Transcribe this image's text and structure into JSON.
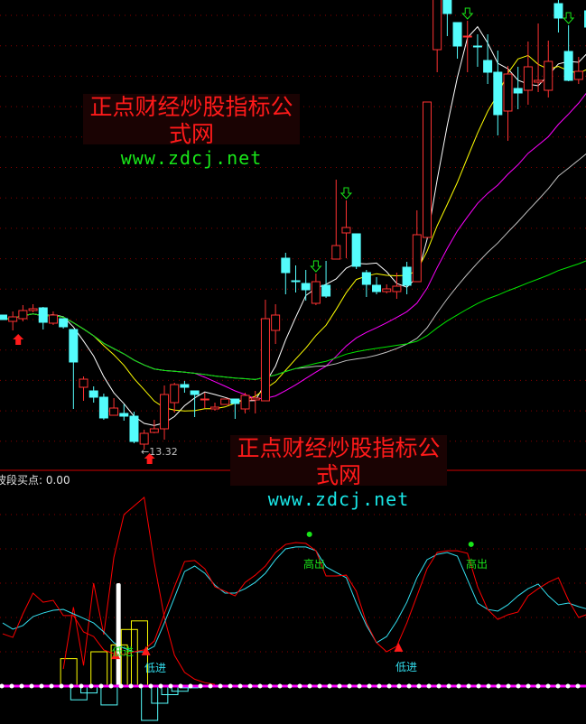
{
  "watermark": {
    "title": "正点财经炒股指标公式网",
    "url": "www.zdcj.net"
  },
  "indicator": {
    "title": "波段买点: 0.00"
  },
  "low_label": "←13.32",
  "signals": {
    "low_in": "低进",
    "high_out": "高出"
  },
  "colors": {
    "up": "#ff3232",
    "down": "#54fcfc",
    "ma5": "#ffffff",
    "ma10": "#ffff00",
    "ma20": "#ff00ff",
    "ma30": "#c0c0c0",
    "ma60": "#00e600",
    "grid": "#8b0000",
    "osc_fast": "#ff0000",
    "osc_slow": "#33e0f0"
  },
  "chart_data": [
    {
      "type": "candlestick",
      "ohlc": [
        [
          16.3,
          16.3,
          16.2,
          16.2
        ],
        [
          16.16,
          16.38,
          15.96,
          16.26
        ],
        [
          16.22,
          16.52,
          16.16,
          16.4
        ],
        [
          16.4,
          16.54,
          16.36,
          16.44
        ],
        [
          16.46,
          16.48,
          15.98,
          16.14
        ],
        [
          16.12,
          16.38,
          16.08,
          16.3
        ],
        [
          16.22,
          16.22,
          16.0,
          16.04
        ],
        [
          15.98,
          15.98,
          14.22,
          15.26
        ],
        [
          14.7,
          14.94,
          14.4,
          14.88
        ],
        [
          14.62,
          14.72,
          14.36,
          14.48
        ],
        [
          14.48,
          14.56,
          13.98,
          14.02
        ],
        [
          14.08,
          14.46,
          14.08,
          14.24
        ],
        [
          14.12,
          14.32,
          13.96,
          14.06
        ],
        [
          14.06,
          14.16,
          13.46,
          13.5
        ],
        [
          13.44,
          13.76,
          13.32,
          13.68
        ],
        [
          13.7,
          13.98,
          13.68,
          13.78
        ],
        [
          13.78,
          14.74,
          13.54,
          14.54
        ],
        [
          14.36,
          14.8,
          14.14,
          14.76
        ],
        [
          14.76,
          14.84,
          14.58,
          14.7
        ],
        [
          14.62,
          14.62,
          14.04,
          14.54
        ],
        [
          14.42,
          14.58,
          14.24,
          14.44
        ],
        [
          14.22,
          14.36,
          14.18,
          14.26
        ],
        [
          14.32,
          14.44,
          14.32,
          14.44
        ],
        [
          14.44,
          14.44,
          14.0,
          14.34
        ],
        [
          14.22,
          14.58,
          14.12,
          14.52
        ],
        [
          14.42,
          14.62,
          14.12,
          14.46
        ],
        [
          14.4,
          16.64,
          14.4,
          16.22
        ],
        [
          15.96,
          16.54,
          15.66,
          16.3
        ],
        [
          17.56,
          17.68,
          16.76,
          17.24
        ],
        [
          17.06,
          17.4,
          16.8,
          17.04
        ],
        [
          17.0,
          17.3,
          16.62,
          16.86
        ],
        [
          16.56,
          17.22,
          16.52,
          17.04
        ],
        [
          16.96,
          17.5,
          16.68,
          16.72
        ],
        [
          17.54,
          19.3,
          17.54,
          17.84
        ],
        [
          18.12,
          18.84,
          17.56,
          18.24
        ],
        [
          18.1,
          18.1,
          17.32,
          17.38
        ],
        [
          17.24,
          17.3,
          16.7,
          16.98
        ],
        [
          16.96,
          17.14,
          16.76,
          16.82
        ],
        [
          16.82,
          16.98,
          16.78,
          16.88
        ],
        [
          16.82,
          17.24,
          16.66,
          16.94
        ],
        [
          17.36,
          17.48,
          16.76,
          16.96
        ],
        [
          17.04,
          18.62,
          17.04,
          18.08
        ],
        [
          18.02,
          21.02,
          18.02,
          21.02
        ],
        [
          22.18,
          23.48,
          21.68,
          23.48
        ],
        [
          23.38,
          23.48,
          22.48,
          22.98
        ],
        [
          22.78,
          22.78,
          21.98,
          22.26
        ],
        [
          22.48,
          22.82,
          21.68,
          22.48
        ],
        [
          22.26,
          22.52,
          21.8,
          22.24
        ],
        [
          21.94,
          22.52,
          21.42,
          21.68
        ],
        [
          21.68,
          22.16,
          20.28,
          20.74
        ],
        [
          20.82,
          21.82,
          20.16,
          21.64
        ],
        [
          21.32,
          21.8,
          20.86,
          21.22
        ],
        [
          21.28,
          22.36,
          20.96,
          21.8
        ],
        [
          21.46,
          22.76,
          21.24,
          21.5
        ],
        [
          21.28,
          22.38,
          21.12,
          21.92
        ],
        [
          23.2,
          23.28,
          22.56,
          22.88
        ],
        [
          22.14,
          22.72,
          21.48,
          21.5
        ],
        [
          21.52,
          22.02,
          21.42,
          21.7
        ],
        [
          23.04,
          23.2,
          22.6,
          22.68
        ]
      ],
      "ma_periods": [
        5,
        10,
        20,
        30,
        60
      ],
      "lowest": 13.32,
      "buy_arrows": [
        1,
        14
      ],
      "sell_arrows": [
        31,
        34,
        46,
        56
      ]
    },
    {
      "type": "line",
      "title": "波段买点",
      "ylim": [
        0,
        115
      ],
      "series_fast": [
        30.5,
        28.4,
        42.1,
        54.2,
        48.9,
        50.0,
        41.1,
        41.1,
        31.6,
        28.9,
        21.1,
        18.9,
        18.4,
        20.0,
        21.1,
        26.3,
        42.1,
        57.9,
        72.6,
        73.2,
        68.4,
        57.9,
        55.3,
        52.6,
        60.5,
        64.7,
        70.0,
        77.9,
        82.6,
        83.7,
        83.2,
        78.9,
        64.2,
        64.2,
        64.7,
        55.3,
        36.8,
        25.3,
        20.0,
        23.2,
        36.8,
        52.6,
        68.4,
        77.9,
        78.9,
        78.9,
        77.4,
        57.9,
        44.7,
        38.9,
        41.6,
        43.2,
        52.6,
        56.8,
        60.5,
        63.2,
        50.0,
        40.0,
        42.1
      ],
      "series_slow": [
        36.8,
        33.2,
        35.3,
        40.5,
        42.6,
        44.2,
        44.7,
        42.1,
        39.5,
        36.8,
        31.6,
        25.3,
        22.1,
        20.0,
        20.0,
        23.2,
        36.8,
        51.6,
        66.8,
        70.0,
        65.8,
        58.9,
        54.2,
        54.2,
        56.8,
        60.5,
        65.8,
        73.7,
        80.0,
        81.1,
        81.1,
        78.9,
        69.5,
        66.3,
        63.2,
        48.4,
        35.3,
        25.3,
        28.9,
        37.9,
        48.9,
        63.2,
        73.7,
        76.8,
        77.9,
        75.8,
        62.1,
        48.4,
        44.7,
        43.7,
        47.4,
        52.6,
        56.8,
        59.5,
        52.6,
        47.4,
        48.4,
        46.3,
        44.7
      ],
      "series_spike": [
        null,
        null,
        null,
        null,
        null,
        null,
        10,
        46,
        12,
        60,
        30,
        75,
        100,
        105,
        110,
        72,
        40,
        18,
        8,
        4,
        2,
        1,
        null
      ],
      "yellow_bars": [
        [
          6,
          16
        ],
        [
          9,
          20
        ],
        [
          11,
          24
        ],
        [
          12,
          33
        ],
        [
          13,
          38
        ]
      ],
      "cyan_bars": [
        [
          7,
          -8
        ],
        [
          8,
          -4
        ],
        [
          10,
          -11
        ],
        [
          14,
          -20
        ],
        [
          15,
          -10
        ],
        [
          16,
          -5
        ],
        [
          17,
          -3
        ],
        [
          18,
          -1
        ]
      ],
      "white_bar": {
        "index": 11.5,
        "value": 60
      },
      "low_in_marks": [
        11,
        14,
        39
      ],
      "high_out_marks": [
        30,
        46
      ]
    }
  ]
}
